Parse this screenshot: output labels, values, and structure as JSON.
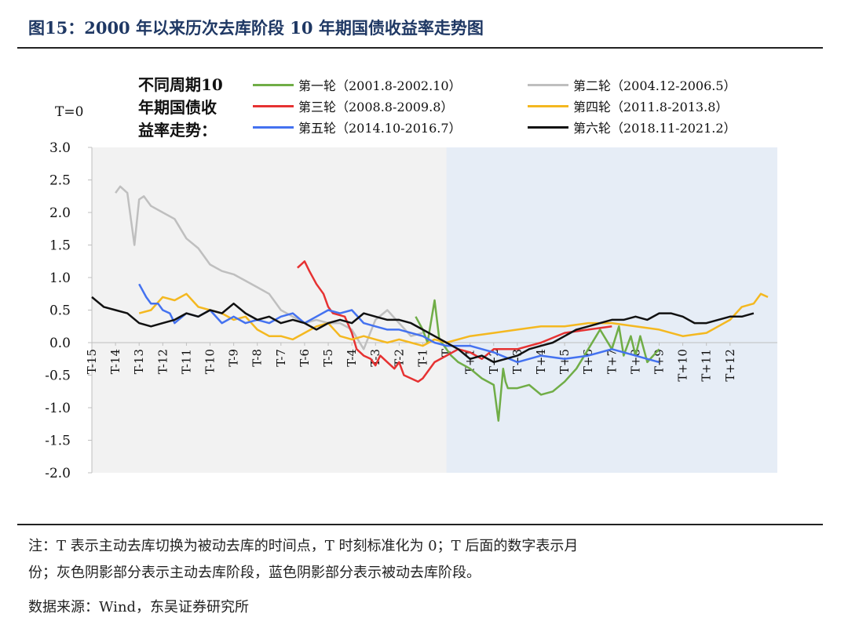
{
  "figure": {
    "title": "图15：2000 年以来历次去库阶段 10 年期国债收益率走势图",
    "note_line1": "注：T 表示主动去库切换为被动去库的时间点，T 时刻标准化为 0；T 后面的数字表示月",
    "note_line2": "份；灰色阴影部分表示主动去库阶段，蓝色阴影部分表示被动去库阶段。",
    "source": "数据来源：Wind，东吴证券研究所"
  },
  "chart_data": {
    "type": "line",
    "legend_title": [
      "不同周期10",
      "年期国债收",
      "益率走势："
    ],
    "y_unit_label": "T=0",
    "ylim": [
      -2.0,
      3.0
    ],
    "xlim": [
      -15,
      14
    ],
    "y_ticks": [
      "3.0",
      "2.5",
      "2.0",
      "1.5",
      "1.0",
      "0.5",
      "0.0",
      "-0.5",
      "-1.0",
      "-1.5",
      "-2.0"
    ],
    "x_ticks": [
      "T-15",
      "T-14",
      "T-13",
      "T-12",
      "T-11",
      "T-10",
      "T-9",
      "T-8",
      "T-7",
      "T-6",
      "T-5",
      "T-4",
      "T-3",
      "T-2",
      "T-1",
      "T",
      "T+1",
      "T+2",
      "T+3",
      "T+4",
      "T+5",
      "T+6",
      "T+7",
      "T+8",
      "T+9",
      "T+10",
      "T+11",
      "T+12"
    ],
    "shading": [
      {
        "from": -15,
        "to": 0,
        "color": "#f2f2f2"
      },
      {
        "from": 0,
        "to": 14,
        "color": "#e6edf6"
      }
    ],
    "grid": false,
    "series": [
      {
        "name": "第一轮（2001.8-2002.10）",
        "color": "#70ad47",
        "x": [
          -1.3,
          -1.0,
          -0.8,
          -0.5,
          -0.3,
          0,
          0.2,
          0.5,
          1.0,
          1.5,
          2.0,
          2.2,
          2.4,
          2.5,
          2.6,
          3.0,
          3.5,
          4.0,
          4.5,
          5.0,
          5.5,
          6.0,
          6.5,
          7.0,
          7.3,
          7.5,
          7.8,
          8.0,
          8.2,
          8.5,
          9.0
        ],
        "y": [
          0.4,
          0.2,
          0.0,
          0.65,
          0.05,
          -0.1,
          -0.2,
          -0.3,
          -0.4,
          -0.55,
          -0.65,
          -1.2,
          -0.4,
          -0.6,
          -0.7,
          -0.7,
          -0.65,
          -0.8,
          -0.75,
          -0.6,
          -0.4,
          -0.1,
          0.2,
          -0.1,
          0.25,
          -0.2,
          0.1,
          -0.2,
          0.1,
          -0.3,
          -0.1
        ]
      },
      {
        "name": "第二轮（2004.12-2006.5）",
        "color": "#bfbfbf",
        "x": [
          -14.0,
          -13.8,
          -13.5,
          -13.2,
          -13.0,
          -12.8,
          -12.5,
          -12.0,
          -11.5,
          -11.0,
          -10.5,
          -10.0,
          -9.5,
          -9.0,
          -8.5,
          -8.0,
          -7.5,
          -7.0,
          -6.5,
          -6.0,
          -5.5,
          -5.0,
          -4.5,
          -4.0,
          -3.5,
          -3.0,
          -2.5,
          -2.0,
          -1.5,
          -1.0
        ],
        "y": [
          2.3,
          2.4,
          2.3,
          1.5,
          2.2,
          2.25,
          2.1,
          2.0,
          1.9,
          1.6,
          1.45,
          1.2,
          1.1,
          1.05,
          0.95,
          0.85,
          0.75,
          0.5,
          0.4,
          0.3,
          0.35,
          0.3,
          0.3,
          0.2,
          -0.1,
          0.35,
          0.5,
          0.3,
          0.1,
          0.15
        ]
      },
      {
        "name": "第三轮（2008.8-2009.8）",
        "color": "#e63232",
        "x": [
          -6.3,
          -6.0,
          -5.8,
          -5.5,
          -5.2,
          -5.0,
          -4.8,
          -4.5,
          -4.3,
          -4.0,
          -3.8,
          -3.5,
          -3.2,
          -3.0,
          -2.8,
          -2.5,
          -2.2,
          -2.0,
          -1.8,
          -1.5,
          -1.2,
          -1.0,
          -0.5,
          0,
          0.5,
          1.0,
          1.5,
          2.0,
          3.0,
          4.0,
          5.0,
          6.0,
          7.0
        ],
        "y": [
          1.15,
          1.25,
          1.1,
          0.9,
          0.75,
          0.55,
          0.45,
          0.42,
          0.4,
          0.15,
          -0.1,
          -0.2,
          -0.25,
          -0.35,
          -0.2,
          -0.3,
          -0.4,
          -0.3,
          -0.5,
          -0.55,
          -0.6,
          -0.55,
          -0.3,
          -0.2,
          -0.1,
          -0.15,
          -0.25,
          -0.1,
          -0.1,
          0.0,
          0.15,
          0.2,
          0.25
        ]
      },
      {
        "name": "第四轮（2011.8-2013.8）",
        "color": "#f4b820",
        "x": [
          -13.0,
          -12.5,
          -12.0,
          -11.5,
          -11.0,
          -10.5,
          -10.0,
          -9.5,
          -9.0,
          -8.5,
          -8.0,
          -7.5,
          -7.0,
          -6.5,
          -6.0,
          -5.5,
          -5.0,
          -4.5,
          -4.0,
          -3.5,
          -3.0,
          -2.5,
          -2.0,
          -1.5,
          -1.0,
          -0.5,
          0,
          1.0,
          2.0,
          3.0,
          4.0,
          5.0,
          6.0,
          7.0,
          8.0,
          9.0,
          10.0,
          11.0,
          11.5,
          12.0,
          12.5,
          13.0,
          13.3,
          13.6
        ],
        "y": [
          0.45,
          0.5,
          0.7,
          0.65,
          0.75,
          0.55,
          0.5,
          0.45,
          0.35,
          0.4,
          0.2,
          0.1,
          0.1,
          0.05,
          0.15,
          0.25,
          0.3,
          0.1,
          0.05,
          0.1,
          0.05,
          0.0,
          0.05,
          0.0,
          -0.05,
          0.05,
          0.0,
          0.1,
          0.15,
          0.2,
          0.25,
          0.25,
          0.3,
          0.3,
          0.25,
          0.2,
          0.1,
          0.15,
          0.25,
          0.35,
          0.55,
          0.6,
          0.75,
          0.7
        ]
      },
      {
        "name": "第五轮（2014.10-2016.7）",
        "color": "#4472f0",
        "x": [
          -13.0,
          -12.7,
          -12.5,
          -12.2,
          -12.0,
          -11.7,
          -11.5,
          -11.0,
          -10.5,
          -10.0,
          -9.5,
          -9.0,
          -8.5,
          -8.0,
          -7.5,
          -7.0,
          -6.5,
          -6.0,
          -5.5,
          -5.0,
          -4.5,
          -4.0,
          -3.5,
          -3.0,
          -2.5,
          -2.0,
          -1.5,
          -1.0,
          -0.5,
          0,
          1.0,
          2.0,
          3.0,
          4.0,
          5.0,
          6.0,
          7.0,
          8.0,
          8.5,
          9.0
        ],
        "y": [
          0.9,
          0.7,
          0.6,
          0.6,
          0.5,
          0.45,
          0.3,
          0.45,
          0.4,
          0.5,
          0.3,
          0.4,
          0.3,
          0.35,
          0.3,
          0.4,
          0.45,
          0.3,
          0.4,
          0.5,
          0.45,
          0.5,
          0.3,
          0.25,
          0.2,
          0.2,
          0.15,
          0.1,
          0.0,
          -0.05,
          -0.05,
          -0.15,
          -0.3,
          -0.2,
          -0.25,
          -0.2,
          -0.1,
          -0.2,
          -0.25,
          -0.3
        ]
      },
      {
        "name": "第六轮（2018.11-2021.2）",
        "color": "#111111",
        "x": [
          -15.0,
          -14.5,
          -14.0,
          -13.5,
          -13.0,
          -12.5,
          -12.0,
          -11.5,
          -11.0,
          -10.5,
          -10.0,
          -9.5,
          -9.0,
          -8.5,
          -8.0,
          -7.5,
          -7.0,
          -6.5,
          -6.0,
          -5.5,
          -5.0,
          -4.5,
          -4.0,
          -3.5,
          -3.0,
          -2.5,
          -2.0,
          -1.5,
          -1.0,
          -0.5,
          0,
          0.5,
          1.0,
          1.5,
          2.0,
          2.5,
          3.0,
          3.5,
          4.0,
          4.5,
          5.0,
          5.5,
          6.0,
          6.5,
          7.0,
          7.5,
          8.0,
          8.5,
          9.0,
          9.5,
          10.0,
          10.5,
          11.0,
          11.5,
          12.0,
          12.5,
          13.0
        ],
        "y": [
          0.7,
          0.55,
          0.5,
          0.45,
          0.3,
          0.25,
          0.3,
          0.35,
          0.45,
          0.4,
          0.5,
          0.45,
          0.6,
          0.45,
          0.35,
          0.4,
          0.3,
          0.35,
          0.3,
          0.2,
          0.3,
          0.35,
          0.3,
          0.45,
          0.4,
          0.35,
          0.35,
          0.3,
          0.2,
          0.1,
          0.0,
          -0.1,
          -0.25,
          -0.2,
          -0.3,
          -0.25,
          -0.2,
          -0.1,
          -0.05,
          0.0,
          0.1,
          0.2,
          0.25,
          0.3,
          0.35,
          0.35,
          0.4,
          0.35,
          0.45,
          0.45,
          0.4,
          0.3,
          0.3,
          0.35,
          0.4,
          0.4,
          0.45
        ]
      }
    ]
  }
}
